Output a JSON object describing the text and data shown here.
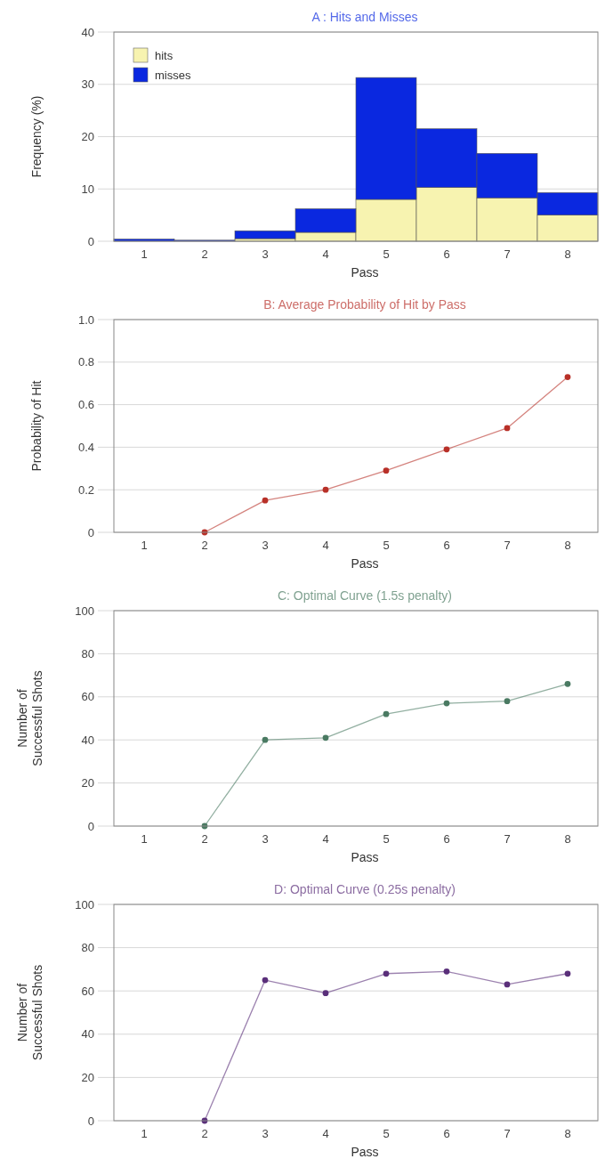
{
  "chart_data": [
    {
      "type": "bar",
      "title": "A : Hits and Misses",
      "xlabel": "Pass",
      "ylabel": "Frequency (%)",
      "categories": [
        "1",
        "2",
        "3",
        "4",
        "5",
        "6",
        "7",
        "8"
      ],
      "stacked": true,
      "ylim": [
        0,
        40
      ],
      "yticks": [
        0,
        10,
        20,
        30,
        40
      ],
      "grid": "y",
      "legend": "top left",
      "series": [
        {
          "name": "hits",
          "color": "#f7f3b0",
          "values": [
            0,
            0,
            0.5,
            1.7,
            8,
            10.3,
            8.3,
            5
          ]
        },
        {
          "name": "misses",
          "color": "#0a28e0",
          "values": [
            0.4,
            0.2,
            1.5,
            4.5,
            23.3,
            11.2,
            8.5,
            4.3
          ]
        }
      ]
    },
    {
      "type": "line",
      "title": "B: Average Probability of Hit by Pass",
      "xlabel": "Pass",
      "ylabel": "Probability of Hit",
      "categories": [
        "1",
        "2",
        "3",
        "4",
        "5",
        "6",
        "7",
        "8"
      ],
      "ylim": [
        0,
        1
      ],
      "yticks": [
        0,
        0.2,
        0.4,
        0.6,
        0.8,
        {
          "value": 1,
          "label": "1.0"
        }
      ],
      "grid": "y",
      "marker": "circle",
      "series": [
        {
          "color": "#b83028",
          "values": [
            null,
            0,
            0.15,
            0.2,
            0.29,
            0.39,
            0.49,
            0.73
          ]
        }
      ]
    },
    {
      "type": "line",
      "title": "C: Optimal Curve (1.5s penalty)",
      "xlabel": "Pass",
      "ylabel": "Number of\nSuccessful Shots",
      "categories": [
        "1",
        "2",
        "3",
        "4",
        "5",
        "6",
        "7",
        "8"
      ],
      "ylim": [
        0,
        100
      ],
      "yticks": [
        0,
        20,
        40,
        60,
        80,
        100
      ],
      "grid": "y",
      "marker": "circle",
      "series": [
        {
          "color": "#4a7a62",
          "values": [
            null,
            0,
            40,
            41,
            52,
            57,
            58,
            66
          ]
        }
      ]
    },
    {
      "type": "line",
      "title": "D: Optimal Curve (0.25s penalty)",
      "xlabel": "Pass",
      "ylabel": "Number of\nSuccessful Shots",
      "categories": [
        "1",
        "2",
        "3",
        "4",
        "5",
        "6",
        "7",
        "8"
      ],
      "ylim": [
        0,
        100
      ],
      "yticks": [
        0,
        20,
        40,
        60,
        80,
        100
      ],
      "grid": "y",
      "marker": "circle",
      "series": [
        {
          "color": "#5a2f7a",
          "values": [
            null,
            0,
            65,
            59,
            68,
            69,
            63,
            68
          ]
        }
      ]
    }
  ]
}
